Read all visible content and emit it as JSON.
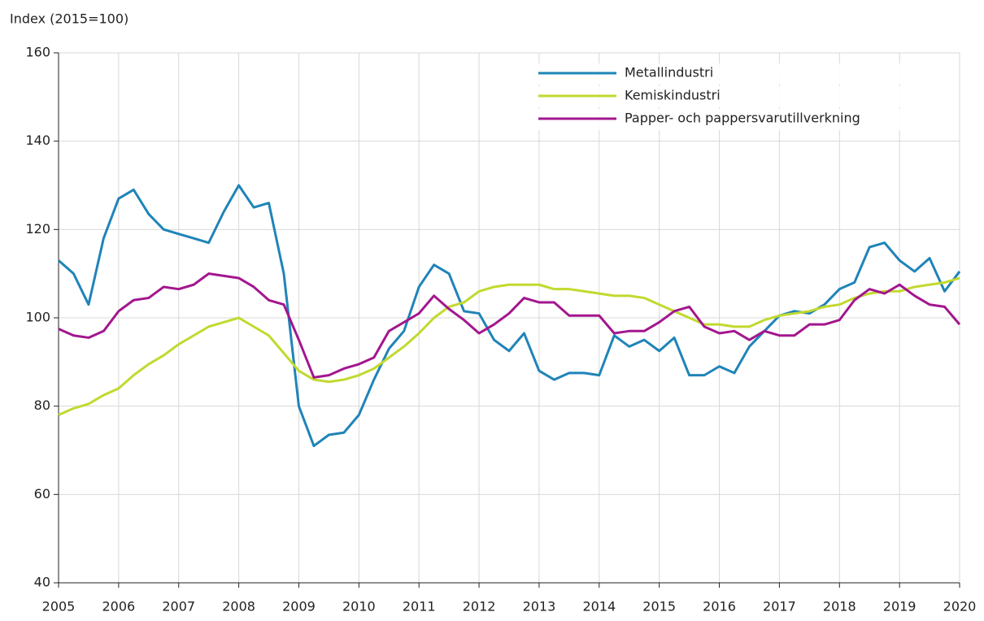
{
  "chart_data": {
    "type": "line",
    "y_label": "Index (2015=100)",
    "x": [
      2005,
      2005.25,
      2005.5,
      2005.75,
      2006,
      2006.25,
      2006.5,
      2006.75,
      2007,
      2007.25,
      2007.5,
      2007.75,
      2008,
      2008.25,
      2008.5,
      2008.75,
      2009,
      2009.25,
      2009.5,
      2009.75,
      2010,
      2010.25,
      2010.5,
      2010.75,
      2011,
      2011.25,
      2011.5,
      2011.75,
      2012,
      2012.25,
      2012.5,
      2012.75,
      2013,
      2013.25,
      2013.5,
      2013.75,
      2014,
      2014.25,
      2014.5,
      2014.75,
      2015,
      2015.25,
      2015.5,
      2015.75,
      2016,
      2016.25,
      2016.5,
      2016.75,
      2017,
      2017.25,
      2017.5,
      2017.75,
      2018,
      2018.25,
      2018.5,
      2018.75,
      2019,
      2019.25,
      2019.5,
      2019.75,
      2020
    ],
    "series": [
      {
        "name": "Metallindustri",
        "color": "#1f84b8",
        "values": [
          113,
          110,
          103,
          118,
          127,
          129,
          123.5,
          120,
          119,
          118,
          117,
          124,
          130,
          125,
          126,
          110,
          80,
          71,
          73.5,
          74,
          78,
          86,
          93,
          97,
          107,
          112,
          110,
          101.5,
          101,
          95,
          92.5,
          96.5,
          88,
          86,
          87.5,
          87.5,
          87,
          96,
          93.5,
          95,
          92.5,
          95.5,
          87,
          87,
          89,
          87.5,
          93.5,
          97,
          100.5,
          101.5,
          101,
          103,
          106.5,
          108,
          116,
          117,
          113,
          110.5,
          113.5,
          106,
          110.5
        ]
      },
      {
        "name": "Kemiskindustri",
        "color": "#c2d92e",
        "values": [
          78,
          79.5,
          80.5,
          82.5,
          84,
          87,
          89.5,
          91.5,
          94,
          96,
          98,
          99,
          100,
          98,
          96,
          92,
          88,
          86,
          85.5,
          86,
          87,
          88.5,
          91,
          93.5,
          96.5,
          100,
          102.5,
          103.5,
          106,
          107,
          107.5,
          107.5,
          107.5,
          106.5,
          106.5,
          106,
          105.5,
          105,
          105,
          104.5,
          103,
          101.5,
          100,
          98.5,
          98.5,
          98,
          98,
          99.5,
          100.5,
          101,
          101.5,
          102.5,
          103,
          104.5,
          105.5,
          106,
          106,
          107,
          107.5,
          108,
          109
        ]
      },
      {
        "name": "Papper- och pappersvarutillverkning",
        "color": "#a3168e",
        "values": [
          97.5,
          96,
          95.5,
          97,
          101.5,
          104,
          104.5,
          107,
          106.5,
          107.5,
          110,
          109.5,
          109,
          107,
          104,
          103,
          95,
          86.5,
          87,
          88.5,
          89.5,
          91,
          97,
          99,
          101,
          105,
          102,
          99.5,
          96.5,
          98.5,
          101,
          104.5,
          103.5,
          103.5,
          100.5,
          100.5,
          100.5,
          96.5,
          97,
          97,
          99,
          101.5,
          102.5,
          98,
          96.5,
          97,
          95,
          97,
          96,
          96,
          98.5,
          98.5,
          99.5,
          104,
          106.5,
          105.5,
          107.5,
          105,
          103,
          102.5,
          98.5
        ]
      }
    ],
    "xlim": [
      2005,
      2020
    ],
    "xticks": [
      2005,
      2006,
      2007,
      2008,
      2009,
      2010,
      2011,
      2012,
      2013,
      2014,
      2015,
      2016,
      2017,
      2018,
      2019,
      2020
    ],
    "ylim": [
      40,
      160
    ],
    "yticks": [
      40,
      60,
      80,
      100,
      120,
      140,
      160
    ],
    "grid": true,
    "legend": "top-right"
  }
}
